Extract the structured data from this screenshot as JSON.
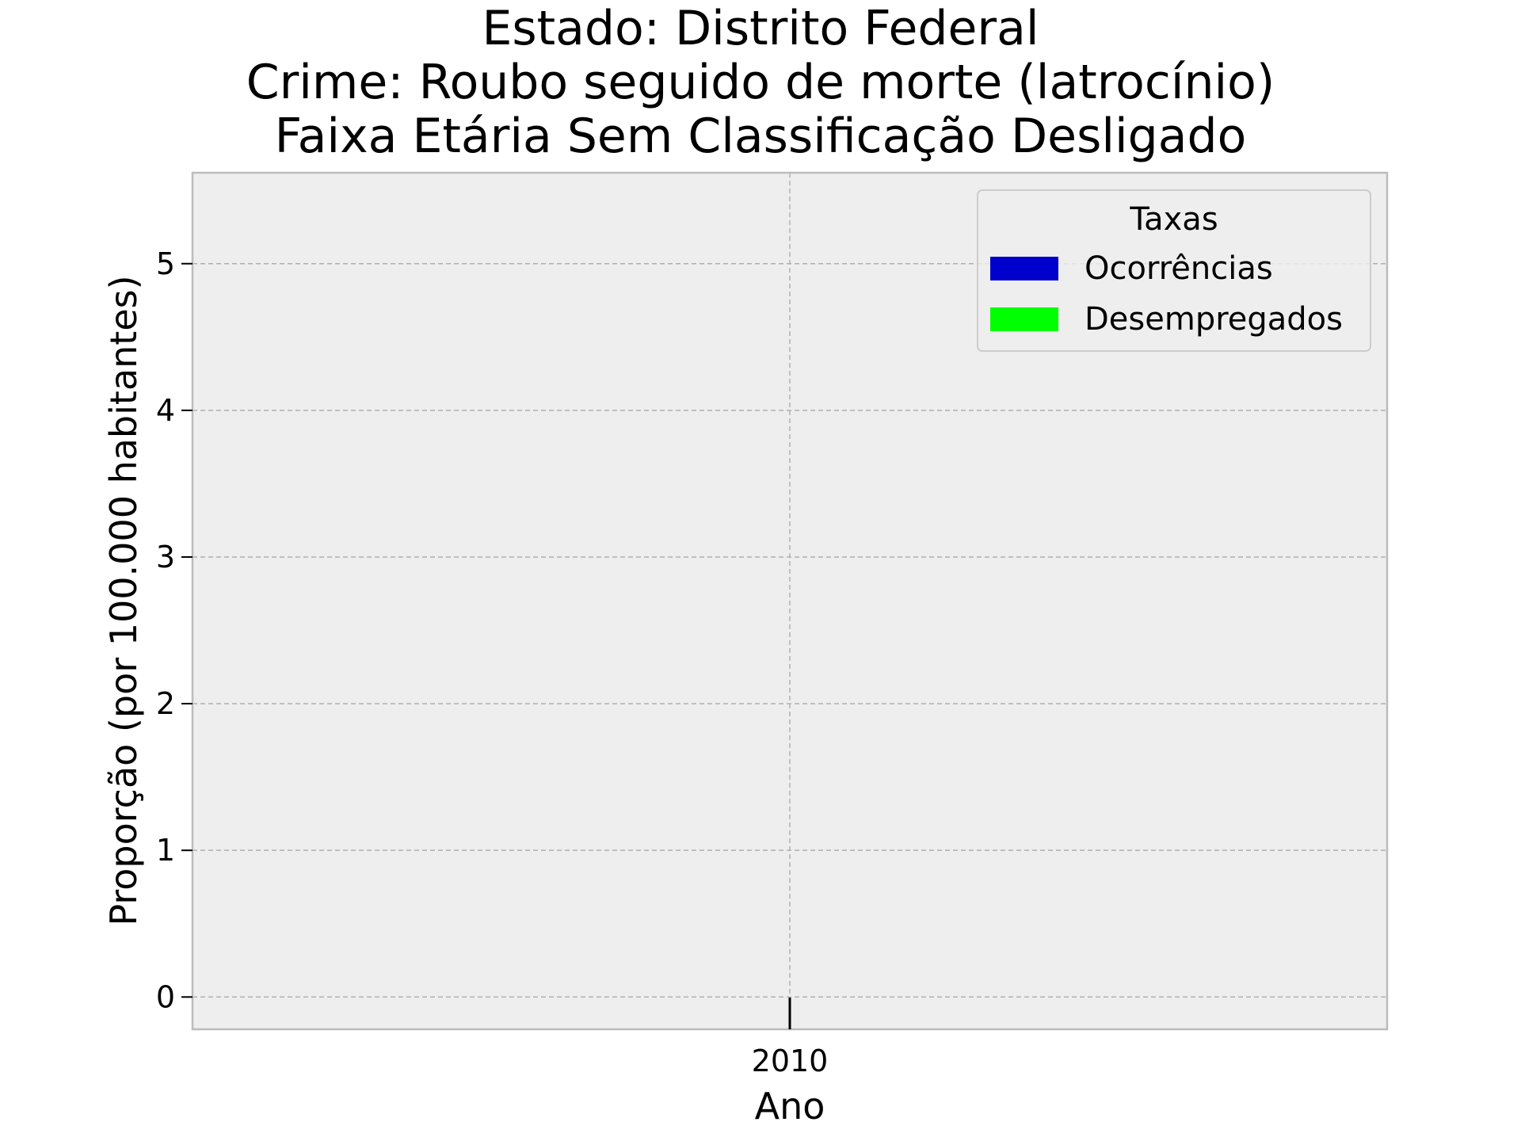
{
  "chart_data": {
    "type": "bar",
    "title_lines": [
      "Estado: Distrito Federal",
      "Crime: Roubo seguido de morte (latrocínio)",
      "Faixa Etária Sem Classificação   Desligado"
    ],
    "xlabel": "Ano",
    "ylabel": "Proporção (por 100.000 habitantes)",
    "categories": [
      "2010"
    ],
    "x_ticks": [
      "2010"
    ],
    "y_ticks": [
      0,
      1,
      2,
      3,
      4,
      5
    ],
    "ylim": [
      -0.22,
      5.62
    ],
    "grid": true,
    "legend": {
      "title": "Taxas",
      "placement": "top-right",
      "entries": [
        {
          "label": "Ocorrências",
          "color": "#0000cc"
        },
        {
          "label": "Desempregados",
          "color": "#00ff00"
        }
      ]
    },
    "series": [
      {
        "name": "Ocorrências",
        "color": "#0000cc",
        "values": [
          null
        ]
      },
      {
        "name": "Desempregados",
        "color": "#00ff00",
        "values": [
          null
        ]
      }
    ],
    "colors": {
      "plot_background": "#eeeeee",
      "grid": "#b0b0b0",
      "frame": "#bcbcbc"
    }
  }
}
